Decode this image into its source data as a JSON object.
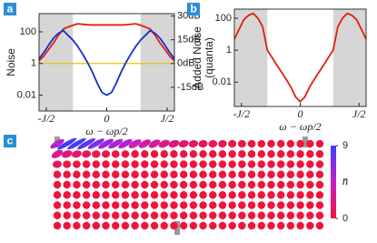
{
  "chart_data": [
    {
      "type": "line",
      "panel_label": "a",
      "ylabel": [
        "Noise"
      ],
      "xlabel": "ω − ωp/2",
      "log_y": true,
      "xlim": [
        -1.12,
        1.12
      ],
      "ylim": [
        0.001,
        1400
      ],
      "xticks": [
        {
          "value": -1,
          "label": "-J/2"
        },
        0,
        {
          "value": 1,
          "label": "J/2"
        }
      ],
      "yticks": [
        0.01,
        1,
        100
      ],
      "y2lim": [
        -30,
        31.5
      ],
      "y2ticks": [
        {
          "value": 30,
          "label": "30dB"
        },
        {
          "value": 15,
          "label": "15dB"
        },
        {
          "value": 0,
          "label": "0dB"
        },
        {
          "value": -15,
          "label": "-15dB"
        }
      ],
      "shaded": [
        [
          -1.12,
          -0.56
        ],
        [
          0.56,
          1.12
        ]
      ],
      "shade_color": "#d6d6d6",
      "hline": {
        "value": 1,
        "color": "#f2c200"
      },
      "x": [
        -1.12,
        -1.04,
        -0.96,
        -0.88,
        -0.8,
        -0.72,
        -0.64,
        -0.56,
        -0.48,
        -0.4,
        -0.32,
        -0.24,
        -0.16,
        -0.08,
        0,
        0.08,
        0.16,
        0.24,
        0.32,
        0.4,
        0.48,
        0.56,
        0.64,
        0.72,
        0.8,
        0.88,
        0.96,
        1.04,
        1.12
      ],
      "series": [
        {
          "color": "#e0200a",
          "values": [
            1.5,
            3,
            8,
            20,
            60,
            150,
            200,
            260,
            320,
            300,
            280,
            270,
            270,
            270,
            270,
            270,
            270,
            270,
            280,
            300,
            320,
            260,
            200,
            150,
            60,
            20,
            8,
            3,
            1.5
          ]
        },
        {
          "color": "#1530c8",
          "values": [
            2,
            5,
            15,
            40,
            80,
            120,
            60,
            30,
            12,
            4,
            1.2,
            0.3,
            0.06,
            0.015,
            0.01,
            0.015,
            0.06,
            0.3,
            1.2,
            4,
            12,
            30,
            60,
            120,
            80,
            40,
            15,
            5,
            2
          ]
        }
      ]
    },
    {
      "type": "line",
      "panel_label": "b",
      "ylabel": [
        "Added Noise",
        "(quanta)"
      ],
      "xlabel": "ω − ωp/2",
      "log_y": true,
      "xlim": [
        -1.12,
        1.12
      ],
      "ylim": [
        0.0003,
        370
      ],
      "xticks": [
        {
          "value": -1,
          "label": "-J/2"
        },
        0,
        {
          "value": 1,
          "label": "J/2"
        }
      ],
      "yticks": [
        0.01,
        1,
        100
      ],
      "shaded": [
        [
          -1.12,
          -0.56
        ],
        [
          0.56,
          1.12
        ]
      ],
      "shade_color": "#d6d6d6",
      "x": [
        -1.12,
        -1.04,
        -0.96,
        -0.88,
        -0.8,
        -0.72,
        -0.64,
        -0.56,
        -0.48,
        -0.4,
        -0.32,
        -0.24,
        -0.16,
        -0.08,
        0,
        0.08,
        0.16,
        0.24,
        0.32,
        0.4,
        0.48,
        0.56,
        0.64,
        0.72,
        0.8,
        0.88,
        0.96,
        1.04,
        1.12
      ],
      "series": [
        {
          "color": "#e0200a",
          "values": [
            5,
            20,
            80,
            150,
            200,
            100,
            30,
            1,
            0.35,
            0.12,
            0.043,
            0.015,
            0.005,
            0.0012,
            0.0006,
            0.0012,
            0.005,
            0.015,
            0.043,
            0.12,
            0.35,
            1,
            30,
            100,
            200,
            150,
            80,
            20,
            5
          ]
        }
      ]
    },
    {
      "type": "heatmap",
      "panel_label": "c",
      "colorbar_label": "n̄",
      "zlim": [
        0,
        9
      ],
      "zticks": [
        0,
        9
      ],
      "colormap": [
        "#f0143c",
        "#c81ec8",
        "#3c3cff"
      ],
      "z": [
        [
          5,
          9,
          8.5,
          8,
          7,
          6,
          5.5,
          5,
          4,
          3.5,
          3,
          2.5,
          2,
          1.5,
          1.2,
          1,
          0.8,
          0.6,
          0.4,
          0.3,
          0.2,
          0.1,
          0,
          0,
          0,
          0,
          0,
          0
        ],
        [
          3,
          2,
          1.5,
          1,
          0.6,
          0.4,
          0.2,
          0.1,
          0,
          0,
          0,
          0,
          0,
          0,
          0,
          0,
          0,
          0,
          0,
          0,
          0,
          0,
          0,
          0,
          0,
          0,
          0,
          0
        ],
        [
          1,
          0.3,
          0.1,
          0,
          0,
          0,
          0,
          0,
          0,
          0,
          0,
          0,
          0,
          0,
          0,
          0,
          0,
          0,
          0,
          0,
          0,
          0,
          0,
          0,
          0,
          0,
          0,
          0
        ],
        [
          0,
          0,
          0,
          0,
          0,
          0,
          0,
          0,
          0,
          0,
          0,
          0,
          0,
          0,
          0,
          0,
          0,
          0,
          0,
          0,
          0,
          0,
          0,
          0,
          0,
          0,
          0,
          0
        ],
        [
          0,
          0,
          0,
          0,
          0,
          0,
          0,
          0,
          0,
          0,
          0,
          0,
          0,
          0,
          0,
          0,
          0,
          0,
          0,
          0,
          0,
          0,
          0,
          0,
          0,
          0,
          0,
          0
        ],
        [
          0,
          0,
          0,
          0,
          0,
          0,
          0,
          0,
          0,
          0,
          0,
          0,
          0,
          0,
          0,
          0,
          0,
          0,
          0,
          0,
          0,
          0,
          0,
          0,
          0,
          0,
          0,
          0
        ],
        [
          0,
          0,
          0,
          0,
          0,
          0,
          0,
          0,
          0,
          0,
          0,
          0,
          0,
          0,
          0,
          0,
          0,
          0,
          0,
          0,
          0,
          0,
          0,
          0,
          0,
          0,
          0,
          0
        ],
        [
          0,
          0,
          0,
          0,
          0,
          0,
          0,
          0,
          0,
          0,
          0,
          0,
          0,
          0,
          0,
          0,
          0,
          0,
          0,
          0,
          0,
          0,
          0,
          0,
          0,
          0,
          0,
          0
        ],
        [
          0,
          0,
          0,
          0,
          0,
          0,
          0,
          0,
          0,
          0,
          0,
          0,
          0,
          0,
          0,
          0,
          0,
          0,
          0,
          0,
          0,
          0,
          0,
          0,
          0,
          0,
          0,
          0
        ]
      ]
    }
  ]
}
